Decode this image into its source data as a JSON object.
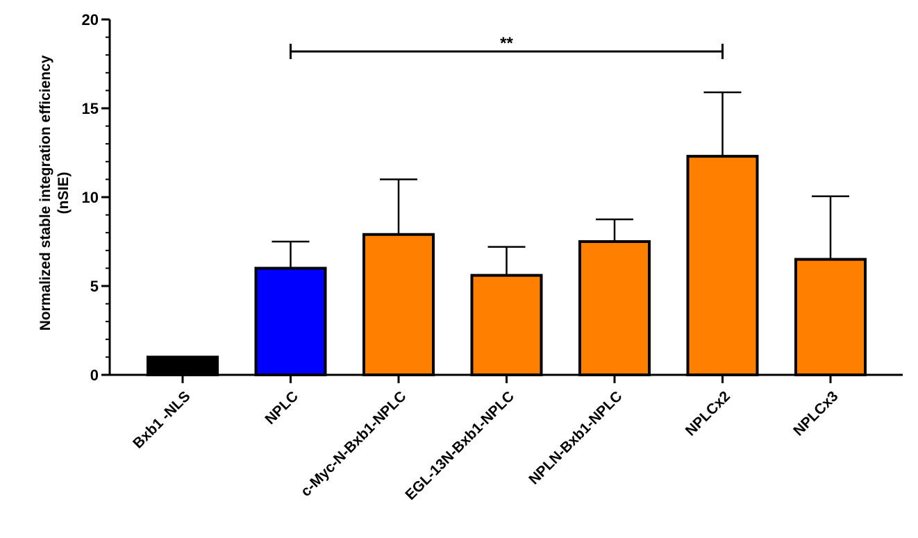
{
  "chart_data": {
    "type": "bar",
    "categories": [
      "Bxb1 -NLS",
      "NPLC",
      "c-Myc-N-Bxb1-NPLC",
      "EGL-13N-Bxb1-NPLC",
      "NPLN-Bxb1-NPLC",
      "NPLCx2",
      "NPLCx3"
    ],
    "values": [
      1.0,
      6.0,
      7.9,
      5.6,
      7.5,
      12.3,
      6.5
    ],
    "error_upper": [
      1.0,
      7.5,
      11.0,
      7.2,
      8.75,
      15.9,
      10.05
    ],
    "colors": [
      "#000000",
      "#0000ff",
      "#ff8000",
      "#ff8000",
      "#ff8000",
      "#ff8000",
      "#ff8000"
    ],
    "ylabel_line1": "Normalized stable integration efficiency",
    "ylabel_line2": "(nSIE)",
    "ylim": [
      0,
      20
    ],
    "yticks": [
      0,
      5,
      10,
      15,
      20
    ],
    "grid": false,
    "significance": {
      "from_category": "NPLC",
      "to_category": "NPLCx2",
      "y": 18.2,
      "label": "**"
    }
  }
}
